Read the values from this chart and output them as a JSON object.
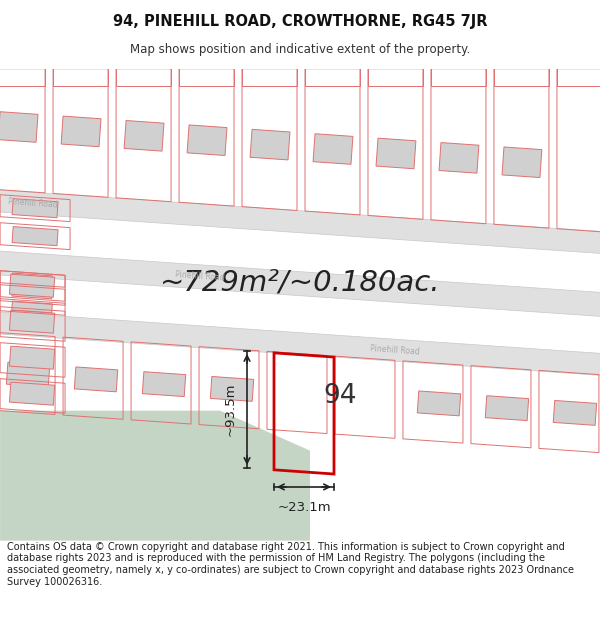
{
  "title_line1": "94, PINEHILL ROAD, CROWTHORNE, RG45 7JR",
  "title_line2": "Map shows position and indicative extent of the property.",
  "footer_text": "Contains OS data © Crown copyright and database right 2021. This information is subject to Crown copyright and database rights 2023 and is reproduced with the permission of HM Land Registry. The polygons (including the associated geometry, namely x, y co-ordinates) are subject to Crown copyright and database rights 2023 Ordnance Survey 100026316.",
  "area_text": "~729m²/~0.180ac.",
  "label_94": "94",
  "dim_width": "~23.1m",
  "dim_height": "~93.5m",
  "bg_color": "#ffffff",
  "map_bg": "#f0f0f0",
  "green_color": "#c5d5c5",
  "road_fill": "#e0e0e0",
  "building_fill": "#d0d0d0",
  "plot_edge": "#e07070",
  "highlight_edge": "#cc0000",
  "road_text_color": "#aaaaaa",
  "title_fontsize": 10.5,
  "subtitle_fontsize": 8.5,
  "footer_fontsize": 7.0,
  "area_fontsize": 21,
  "label_fontsize": 19,
  "dim_fontsize": 9.5
}
